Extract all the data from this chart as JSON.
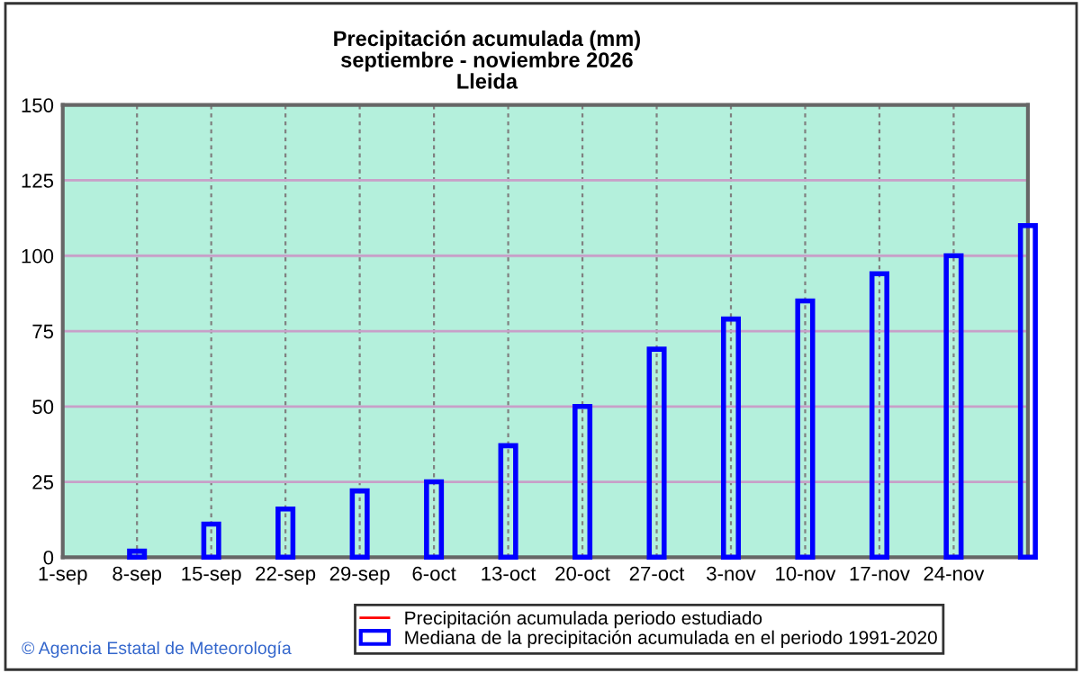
{
  "chart_data": {
    "type": "bar",
    "title": "Precipitación acumulada (mm)\nseptiembre - noviembre 2026\nLleida",
    "categories": [
      "1-sep",
      "8-sep",
      "15-sep",
      "22-sep",
      "29-sep",
      "6-oct",
      "13-oct",
      "20-oct",
      "27-oct",
      "3-nov",
      "10-nov",
      "17-nov",
      "24-nov",
      null
    ],
    "series": [
      {
        "name": "Precipitación acumulada periodo estudiado",
        "color": "#ff0000",
        "type": "line",
        "values": [
          null,
          null,
          null,
          null,
          null,
          null,
          null,
          null,
          null,
          null,
          null,
          null,
          null,
          null
        ]
      },
      {
        "name": "Mediana de la precipitación acumulada en el periodo 1991-2020",
        "color": "#0000ff",
        "values": [
          null,
          2,
          11,
          16,
          22,
          25,
          37,
          50,
          69,
          79,
          85,
          94,
          100,
          110
        ]
      }
    ],
    "ylim": [
      0,
      150
    ],
    "yticks": [
      0,
      25,
      50,
      75,
      100,
      125,
      150
    ],
    "grid": true,
    "legend": "bottom",
    "annotations": [
      "© Agencia Estatal de Meteorología"
    ]
  }
}
